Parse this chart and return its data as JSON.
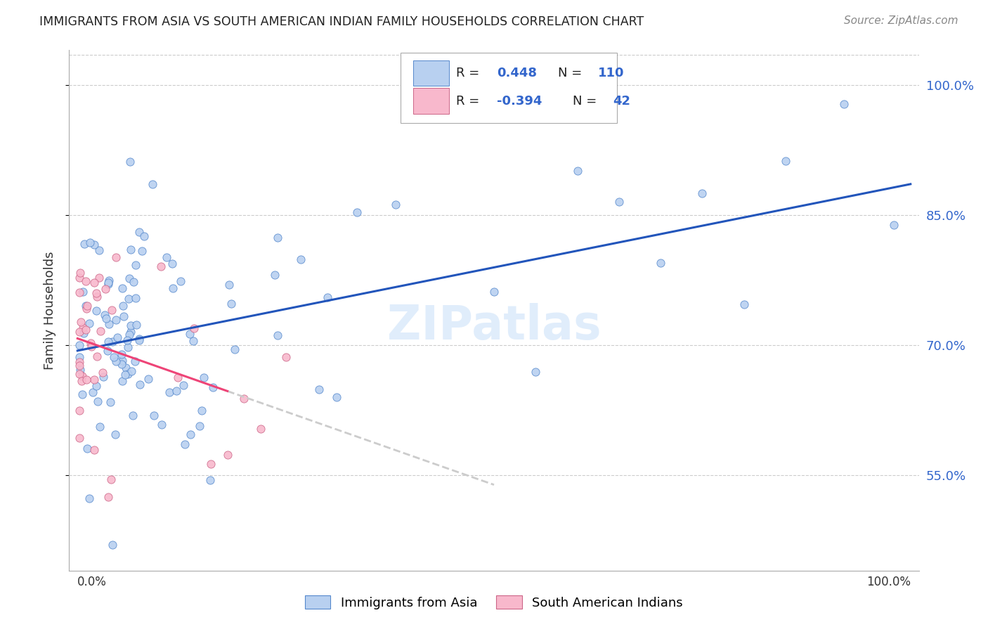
{
  "title": "IMMIGRANTS FROM ASIA VS SOUTH AMERICAN INDIAN FAMILY HOUSEHOLDS CORRELATION CHART",
  "source": "Source: ZipAtlas.com",
  "ylabel": "Family Households",
  "yticks": [
    0.55,
    0.7,
    0.85,
    1.0
  ],
  "ytick_labels": [
    "55.0%",
    "70.0%",
    "85.0%",
    "100.0%"
  ],
  "legend_label1": "Immigrants from Asia",
  "legend_label2": "South American Indians",
  "r1": 0.448,
  "n1": 110,
  "r2": -0.394,
  "n2": 42,
  "color_blue_fill": "#b8d0f0",
  "color_blue_edge": "#5588cc",
  "color_blue_line": "#2255bb",
  "color_blue_text": "#3366cc",
  "color_pink_fill": "#f8b8cc",
  "color_pink_edge": "#cc6688",
  "color_pink_line": "#ee4477",
  "color_pink_dash": "#cccccc",
  "background": "#ffffff",
  "grid_color": "#cccccc",
  "watermark": "ZIPatlas",
  "xlim": [
    0.0,
    1.0
  ],
  "ylim": [
    0.44,
    1.04
  ]
}
